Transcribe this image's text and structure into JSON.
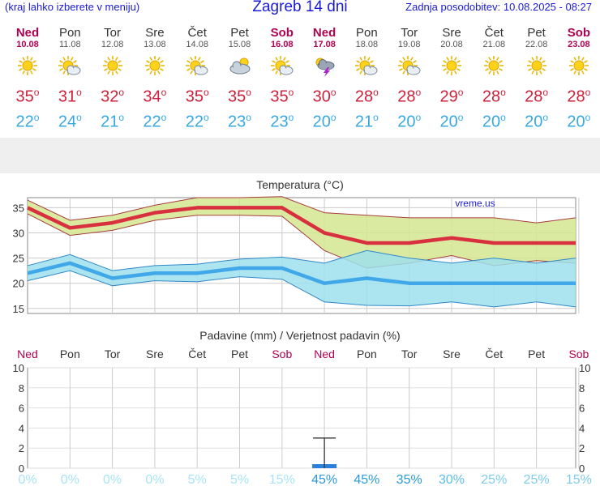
{
  "header": {
    "left_note": "(kraj lahko izberete v meniju)",
    "title": "Zagreb 14 dni",
    "updated": "Zadnja posodobitev: 10.08.2025 - 08:27"
  },
  "days": [
    {
      "name": "Ned",
      "date": "10.08",
      "weekend": true,
      "icon": "sun-icon",
      "hi": "35",
      "lo": "22"
    },
    {
      "name": "Pon",
      "date": "11.08",
      "weekend": false,
      "icon": "sun-cloud-icon",
      "hi": "31",
      "lo": "24"
    },
    {
      "name": "Tor",
      "date": "12.08",
      "weekend": false,
      "icon": "sun-icon",
      "hi": "32",
      "lo": "21"
    },
    {
      "name": "Sre",
      "date": "13.08",
      "weekend": false,
      "icon": "sun-icon",
      "hi": "34",
      "lo": "22"
    },
    {
      "name": "Čet",
      "date": "14.08",
      "weekend": false,
      "icon": "sun-cloud-icon",
      "hi": "35",
      "lo": "22"
    },
    {
      "name": "Pet",
      "date": "15.08",
      "weekend": false,
      "icon": "cloudy-sun-icon",
      "hi": "35",
      "lo": "23"
    },
    {
      "name": "Sob",
      "date": "16.08",
      "weekend": true,
      "icon": "sun-cloud-icon",
      "hi": "35",
      "lo": "23"
    },
    {
      "name": "Ned",
      "date": "17.08",
      "weekend": true,
      "icon": "thunderstorm-icon",
      "hi": "30",
      "lo": "20"
    },
    {
      "name": "Pon",
      "date": "18.08",
      "weekend": false,
      "icon": "sun-cloud-icon",
      "hi": "28",
      "lo": "21"
    },
    {
      "name": "Tor",
      "date": "19.08",
      "weekend": false,
      "icon": "sun-cloud-icon",
      "hi": "28",
      "lo": "20"
    },
    {
      "name": "Sre",
      "date": "20.08",
      "weekend": false,
      "icon": "sun-icon",
      "hi": "29",
      "lo": "20"
    },
    {
      "name": "Čet",
      "date": "21.08",
      "weekend": false,
      "icon": "sun-icon",
      "hi": "28",
      "lo": "20"
    },
    {
      "name": "Pet",
      "date": "22.08",
      "weekend": false,
      "icon": "sun-icon",
      "hi": "28",
      "lo": "20"
    },
    {
      "name": "Sob",
      "date": "23.08",
      "weekend": true,
      "icon": "sun-icon",
      "hi": "28",
      "lo": "20"
    }
  ],
  "chart_data": [
    {
      "type": "line",
      "title": "Temperatura (°C)",
      "watermark": "vreme.us",
      "ylim": [
        14,
        37
      ],
      "yticks": [
        15,
        20,
        25,
        30,
        35
      ],
      "grid": true,
      "series": [
        {
          "role": "max",
          "color": "#d8303e",
          "values": [
            35,
            31,
            32,
            34,
            35,
            35,
            35,
            30,
            28,
            28,
            29,
            28,
            28,
            28
          ],
          "band_upper": [
            36.5,
            32.5,
            33.5,
            35.5,
            37,
            37,
            37.2,
            34,
            33.5,
            33,
            33,
            33,
            32,
            33
          ],
          "band_lower": [
            33.8,
            29.5,
            30.5,
            32.5,
            33.5,
            33.5,
            33.3,
            26.5,
            23,
            24,
            25.5,
            23.5,
            24.5,
            24
          ]
        },
        {
          "role": "min",
          "color": "#40a8e8",
          "values": [
            22,
            24,
            21,
            22,
            22,
            23,
            23,
            20,
            21,
            20,
            20,
            20,
            20,
            20
          ],
          "band_upper": [
            23.5,
            25.7,
            22.5,
            23.5,
            23.8,
            24.8,
            25.2,
            24,
            26.5,
            25,
            24,
            25,
            24,
            25
          ],
          "band_lower": [
            20.5,
            22.5,
            19.5,
            20.5,
            20.3,
            21.3,
            20.8,
            16.3,
            15.6,
            15.5,
            16.3,
            15.3,
            16.3,
            15.3
          ]
        }
      ]
    },
    {
      "type": "bar",
      "title": "Padavine (mm) / Verjetnost padavin (%)",
      "ylim": [
        0,
        10
      ],
      "yticks": [
        0,
        2,
        4,
        6,
        8,
        10
      ],
      "grid": true,
      "values": [
        0,
        0,
        0,
        0,
        0,
        0,
        0,
        0.4,
        0,
        0,
        0,
        0,
        0,
        0
      ],
      "error_high": [
        0,
        0,
        0,
        0,
        0,
        0,
        0,
        3,
        0,
        0,
        0,
        0,
        0,
        0
      ],
      "probability": [
        "0%",
        "0%",
        "0%",
        "0%",
        "5%",
        "5%",
        "15%",
        "45%",
        "45%",
        "35%",
        "30%",
        "25%",
        "25%",
        "15%"
      ],
      "prob_colors": [
        "#a8e4f4",
        "#a8e4f4",
        "#a8e4f4",
        "#a8e4f4",
        "#a8e4f4",
        "#a8e4f4",
        "#a8e4f4",
        "#2a9ad8",
        "#2a9ad8",
        "#2a9ad8",
        "#5bbde8",
        "#7ccceb",
        "#7ccceb",
        "#7ccceb"
      ]
    }
  ]
}
